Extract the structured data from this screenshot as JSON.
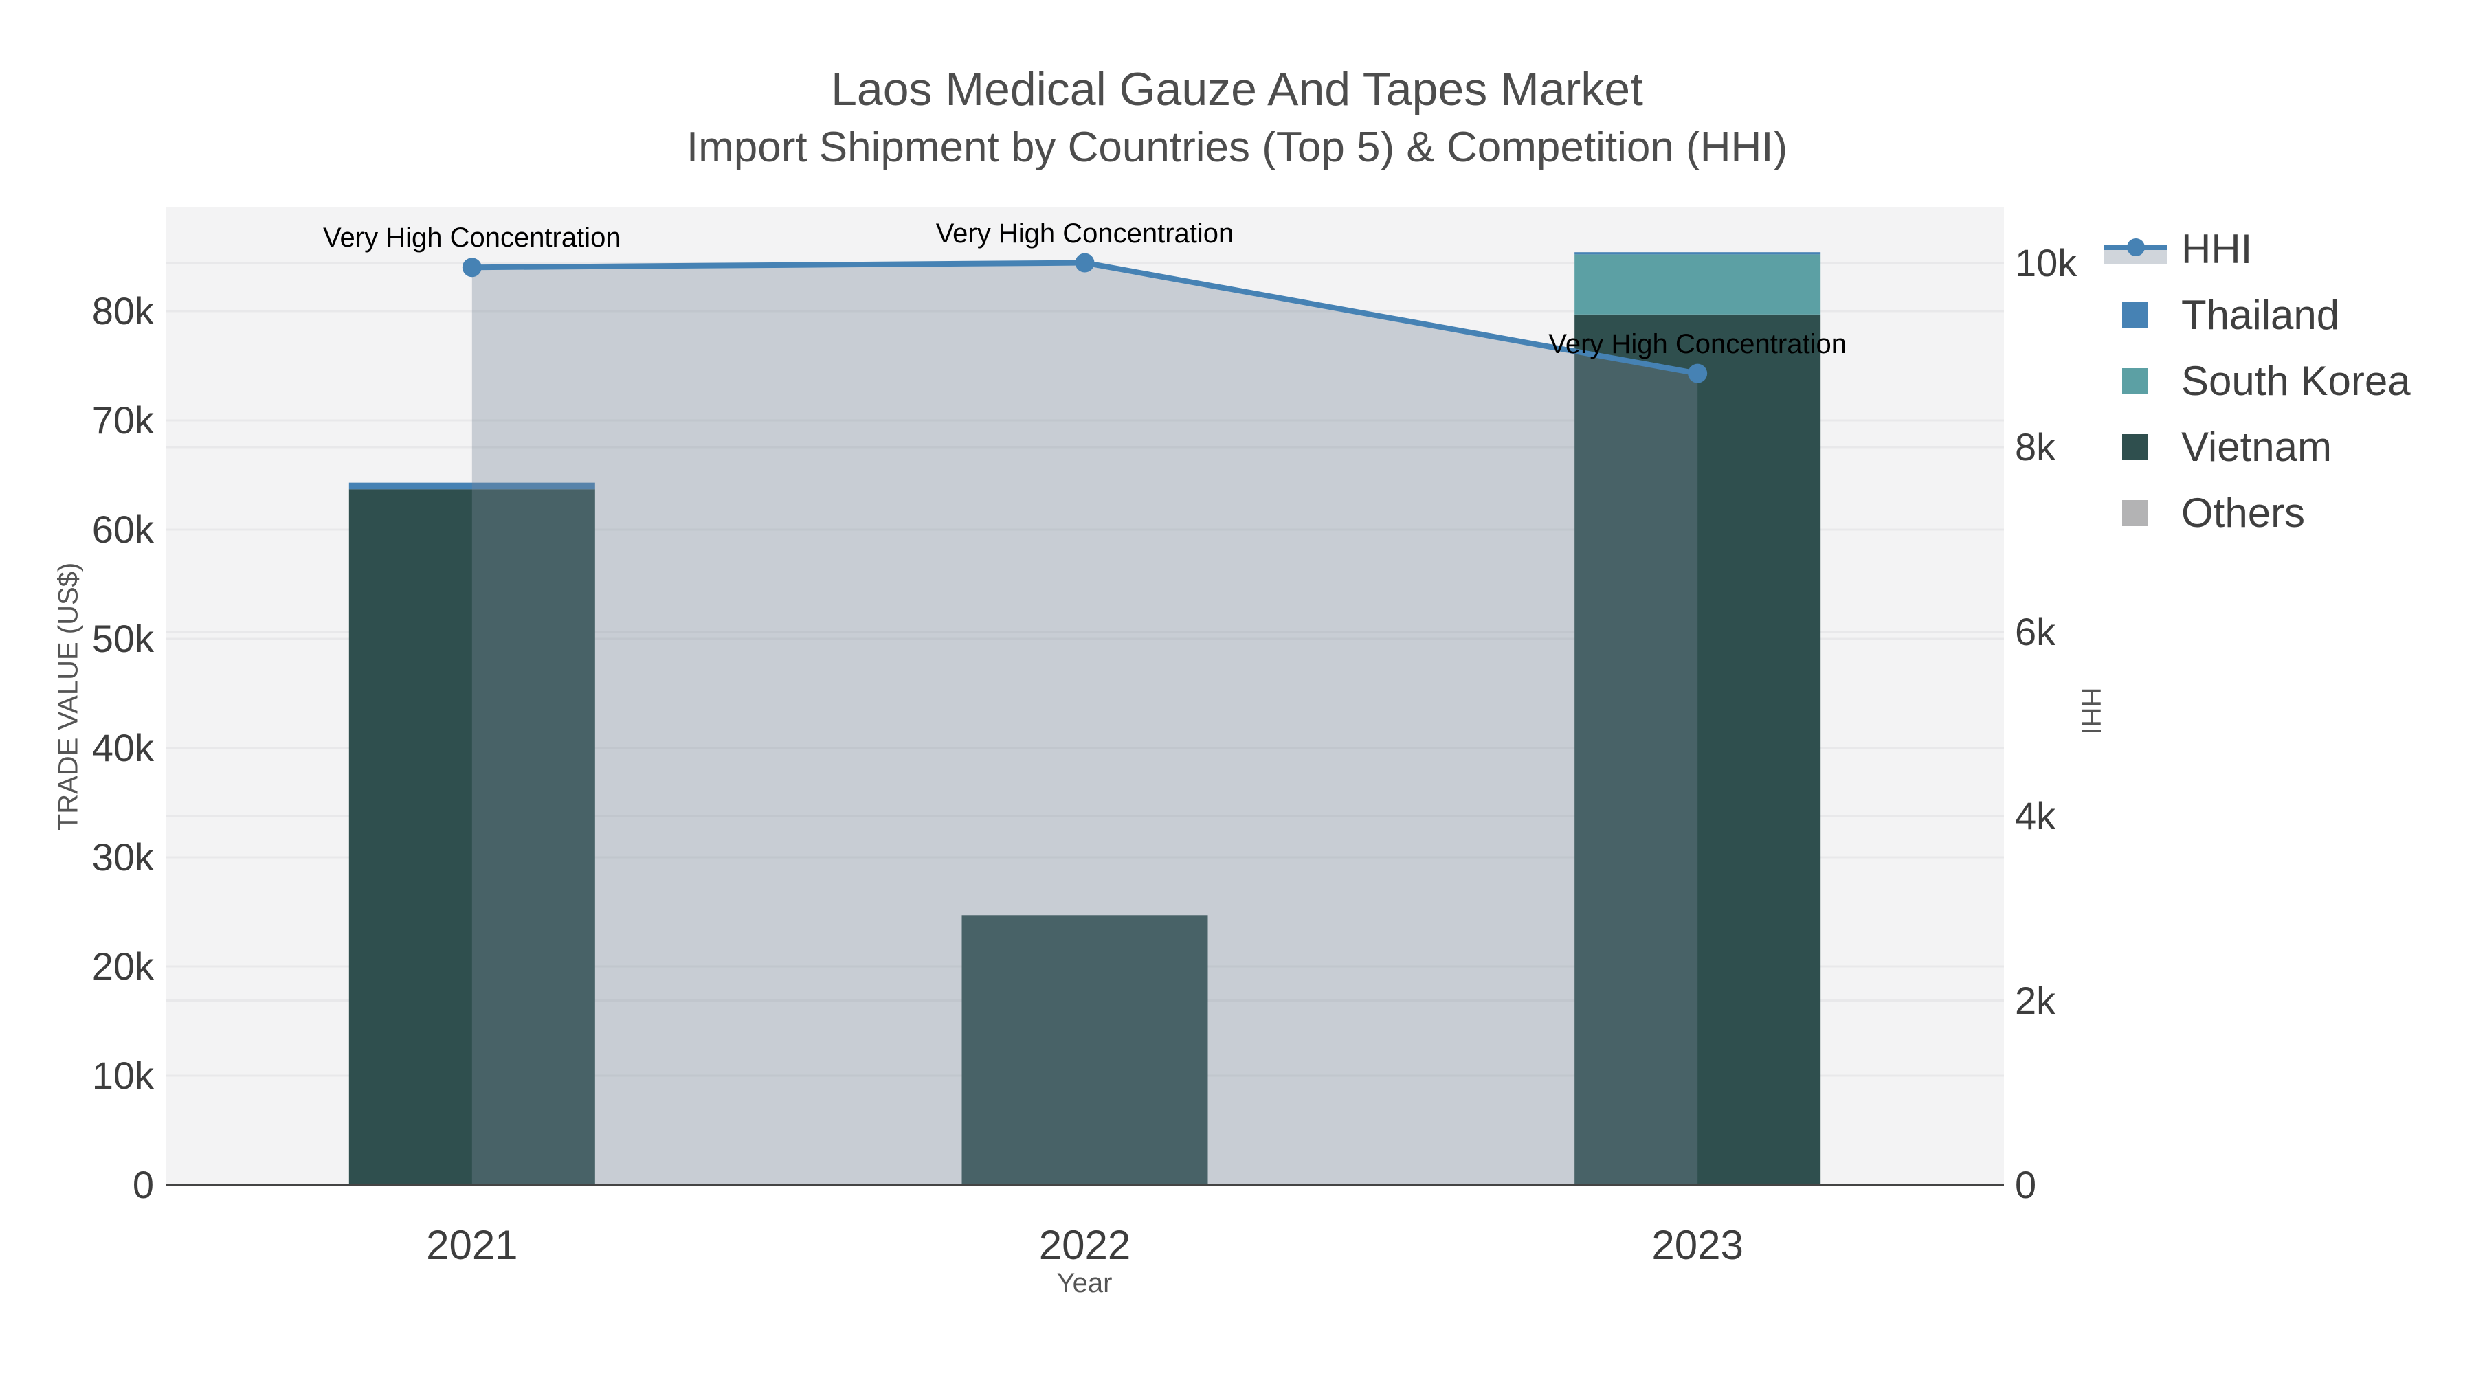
{
  "title": {
    "line1": "Laos Medical Gauze And Tapes Market",
    "line2": "Import Shipment by Countries (Top 5) & Competition (HHI)"
  },
  "chart_data": {
    "type": "bar",
    "subtype": "stacked-bars-with-line-overlay",
    "title": "Laos Medical Gauze And Tapes Market — Import Shipment by Countries (Top 5) & Competition (HHI)",
    "categories": [
      "2021",
      "2022",
      "2023"
    ],
    "series": [
      {
        "name": "HHI",
        "type": "line",
        "axis": "right",
        "values": [
          9950,
          10000,
          8800
        ]
      },
      {
        "name": "Thailand",
        "type": "bar",
        "axis": "left",
        "values": [
          600,
          0,
          200
        ]
      },
      {
        "name": "South Korea",
        "type": "bar",
        "axis": "left",
        "values": [
          0,
          0,
          5500
        ]
      },
      {
        "name": "Vietnam",
        "type": "bar",
        "axis": "left",
        "values": [
          63700,
          24700,
          79700
        ]
      },
      {
        "name": "Others",
        "type": "bar",
        "axis": "left",
        "values": [
          0,
          0,
          0
        ]
      }
    ],
    "stack_order": [
      "Vietnam",
      "South Korea",
      "Thailand",
      "Others"
    ],
    "xlabel": "Year",
    "ylabel_left": "TRADE VALUE (US$)",
    "ylabel_right": "HHI",
    "y_left_ticks": [
      {
        "label": "0",
        "value": 0
      },
      {
        "label": "10k",
        "value": 10000
      },
      {
        "label": "20k",
        "value": 20000
      },
      {
        "label": "30k",
        "value": 30000
      },
      {
        "label": "40k",
        "value": 40000
      },
      {
        "label": "50k",
        "value": 50000
      },
      {
        "label": "60k",
        "value": 60000
      },
      {
        "label": "70k",
        "value": 70000
      },
      {
        "label": "80k",
        "value": 80000
      }
    ],
    "y_right_ticks": [
      {
        "label": "0",
        "value": 0
      },
      {
        "label": "2k",
        "value": 2000
      },
      {
        "label": "4k",
        "value": 4000
      },
      {
        "label": "6k",
        "value": 6000
      },
      {
        "label": "8k",
        "value": 8000
      },
      {
        "label": "10k",
        "value": 10000
      }
    ],
    "y_left_range": [
      0,
      89500
    ],
    "y_right_range": [
      0,
      10600
    ],
    "grid": true,
    "legend_position": "top-right-outside",
    "annotations": [
      {
        "text": "Very High Concentration",
        "category": "2021",
        "hhi": 9950
      },
      {
        "text": "Very High Concentration",
        "category": "2022",
        "hhi": 10000
      },
      {
        "text": "Very High Concentration",
        "category": "2023",
        "hhi": 8800
      }
    ]
  },
  "legend": {
    "items": [
      {
        "label": "HHI",
        "glyph": "line-marker-band"
      },
      {
        "label": "Thailand",
        "glyph": "square"
      },
      {
        "label": "South Korea",
        "glyph": "square"
      },
      {
        "label": "Vietnam",
        "glyph": "square"
      },
      {
        "label": "Others",
        "glyph": "square"
      }
    ]
  },
  "colors": {
    "hhi_line": "#4682b4",
    "hhi_area_fill": "rgba(119,136,153,0.35)",
    "thailand": "#4682b4",
    "south_korea": "#5ca0a4",
    "vietnam": "#2f4f4e",
    "others": "#b3b3b4",
    "plot_bg": "#f3f3f4",
    "gridline": "#e8e8ea",
    "axis_line": "#444444",
    "tick_text": "#3d3d3d",
    "title_text": "#4d4d4d",
    "axis_title_text": "#555555",
    "annotation_text": "#000000"
  }
}
